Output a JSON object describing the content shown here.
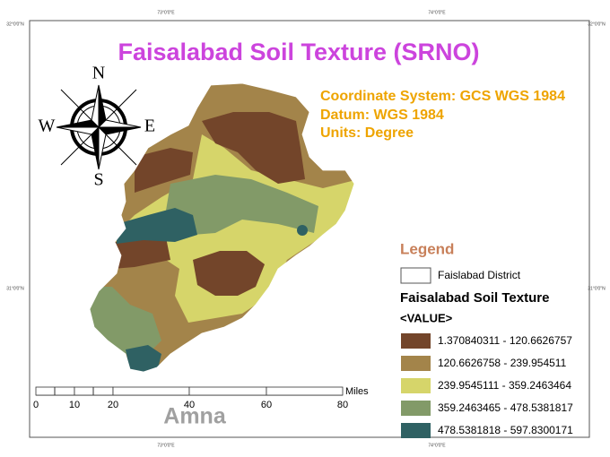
{
  "title": "Faisalabad Soil Texture (SRNO)",
  "info": [
    "Coordinate System: GCS WGS 1984",
    "Datum: WGS 1984",
    "Units: Degree"
  ],
  "north_arrow": {
    "n": "N",
    "s": "S",
    "e": "E",
    "w": "W"
  },
  "graticule": {
    "top": [
      "73°0'0\"E",
      "74°0'0\"E"
    ],
    "bottom": [
      "73°0'0\"E",
      "74°0'0\"E"
    ],
    "left": [
      "32°0'0\"N",
      "31°0'0\"N"
    ],
    "right": [
      "32°0'0\"N",
      "31°0'0\"N"
    ]
  },
  "legend": {
    "title": "Legend",
    "district": "Faislabad District",
    "layer": "Faisalabad Soil Texture",
    "field": "<VALUE>",
    "classes": [
      {
        "label": "1.370840311 - 120.6626757",
        "color": "#73452a"
      },
      {
        "label": "120.6626758 - 239.954511",
        "color": "#a3844a"
      },
      {
        "label": "239.9545111 - 359.2463464",
        "color": "#d6d56a"
      },
      {
        "label": "359.2463465 - 478.5381817",
        "color": "#829a68"
      },
      {
        "label": "478.5381818 - 597.8300171",
        "color": "#2f6163"
      }
    ]
  },
  "scale_bar": {
    "labels": [
      "0",
      "10",
      "20",
      "40",
      "60",
      "80"
    ],
    "unit": "Miles"
  },
  "author": "Amna"
}
